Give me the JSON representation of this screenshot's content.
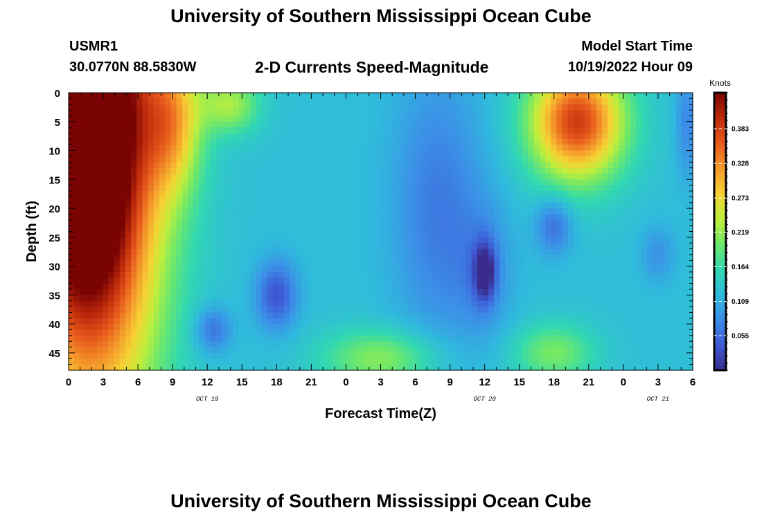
{
  "page": {
    "title": "University of Southern Mississippi Ocean Cube",
    "title_repeat": "University of Southern Mississippi Ocean Cube"
  },
  "header": {
    "station": "USMR1",
    "coords": "30.0770N  88.5830W",
    "subtitle": "2-D Currents Speed-Magnitude",
    "model_label": "Model Start Time",
    "model_time": "10/19/2022 Hour 09"
  },
  "chart_data": {
    "type": "heatmap",
    "title": "2-D Currents Speed-Magnitude",
    "xlabel": "Forecast Time(Z)",
    "ylabel": "Depth (ft)",
    "x_tick_labels": [
      "0",
      "3",
      "6",
      "9",
      "12",
      "15",
      "18",
      "21",
      "0",
      "3",
      "6",
      "9",
      "12",
      "15",
      "18",
      "21",
      "0",
      "3",
      "6"
    ],
    "x_hours_range": [
      0,
      54
    ],
    "date_labels": [
      {
        "text": "OCT 19",
        "hour": 12
      },
      {
        "text": "OCT 20",
        "hour": 36
      },
      {
        "text": "OCT 21",
        "hour": 51
      }
    ],
    "y_tick_labels": [
      "0",
      "5",
      "10",
      "15",
      "20",
      "25",
      "30",
      "35",
      "40",
      "45"
    ],
    "ylim": [
      0,
      48
    ],
    "y_inverted": true,
    "colorbar": {
      "unit": "Knots",
      "range": [
        0,
        0.44
      ],
      "tick_labels": [
        "0.383",
        "0.328",
        "0.273",
        "0.219",
        "0.164",
        "0.109",
        "0.055"
      ],
      "tick_values": [
        0.383,
        0.328,
        0.273,
        0.219,
        0.164,
        0.109,
        0.055
      ]
    },
    "colormap": [
      "#3a2c8c",
      "#3e5bd6",
      "#3c8ee8",
      "#2fbbdc",
      "#32d8b0",
      "#6ee86a",
      "#c0ee3c",
      "#f6d234",
      "#f59a2c",
      "#e75a1c",
      "#bd2a0c",
      "#7a0403"
    ],
    "background_speed": 0.125,
    "features": [
      {
        "hour": 0,
        "depth": 0,
        "speed_delta": 0.3,
        "spread_hours": 5.0,
        "spread_depth": 40
      },
      {
        "hour": 3,
        "depth": 10,
        "speed_delta": 0.27,
        "spread_hours": 5.5,
        "spread_depth": 45
      },
      {
        "hour": 9,
        "depth": 5,
        "speed_delta": 0.13,
        "spread_hours": 2.5,
        "spread_depth": 12
      },
      {
        "hour": 14,
        "depth": 2,
        "speed_delta": 0.1,
        "spread_hours": 2.5,
        "spread_depth": 5
      },
      {
        "hour": 12.5,
        "depth": 41,
        "speed_delta": -0.07,
        "spread_hours": 1.6,
        "spread_depth": 4
      },
      {
        "hour": 18,
        "depth": 35,
        "speed_delta": -0.09,
        "spread_hours": 1.8,
        "spread_depth": 6
      },
      {
        "hour": 27,
        "depth": 46,
        "speed_delta": 0.09,
        "spread_hours": 5.0,
        "spread_depth": 5
      },
      {
        "hour": 32,
        "depth": 20,
        "speed_delta": -0.06,
        "spread_hours": 4.0,
        "spread_depth": 25
      },
      {
        "hour": 36,
        "depth": 31,
        "speed_delta": -0.11,
        "spread_hours": 0.9,
        "spread_depth": 5
      },
      {
        "hour": 36,
        "depth": 31,
        "speed_delta": -0.04,
        "spread_hours": 2.5,
        "spread_depth": 12
      },
      {
        "hour": 42,
        "depth": 23,
        "speed_delta": -0.07,
        "spread_hours": 1.6,
        "spread_depth": 5
      },
      {
        "hour": 42,
        "depth": 45,
        "speed_delta": 0.08,
        "spread_hours": 3.5,
        "spread_depth": 5
      },
      {
        "hour": 44,
        "depth": 5,
        "speed_delta": 0.26,
        "spread_hours": 4.0,
        "spread_depth": 10
      },
      {
        "hour": 51,
        "depth": 28,
        "speed_delta": -0.04,
        "spread_hours": 1.5,
        "spread_depth": 5
      },
      {
        "hour": 53.5,
        "depth": 5,
        "speed_delta": -0.05,
        "spread_hours": 1.0,
        "spread_depth": 10
      }
    ],
    "grid": false,
    "legend": "colorbar-right"
  }
}
